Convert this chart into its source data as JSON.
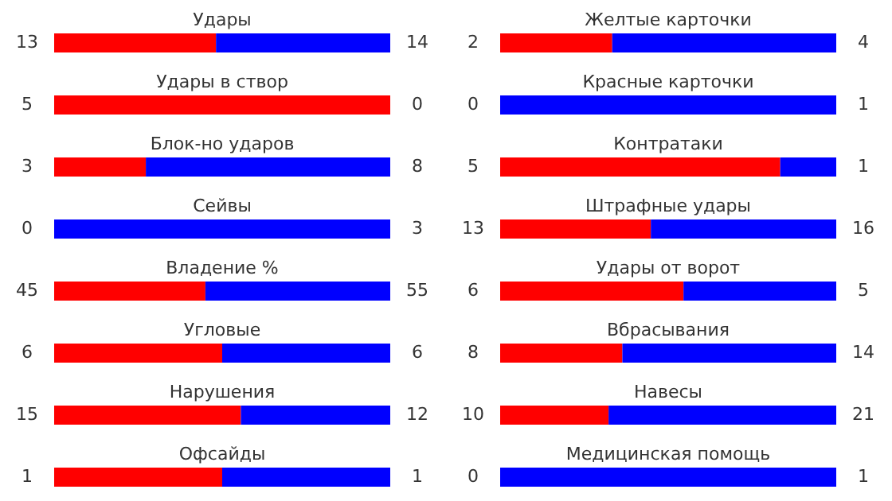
{
  "chart_data": [
    {
      "type": "bar",
      "orientation": "horizontal",
      "stacked": true,
      "data_labels": true,
      "categories": [
        "Удары"
      ],
      "series": [
        {
          "color": "#ff0000",
          "values": [
            13
          ]
        },
        {
          "color": "#0000ff",
          "values": [
            14
          ]
        }
      ]
    },
    {
      "type": "bar",
      "orientation": "horizontal",
      "stacked": true,
      "categories": [
        "Удары в створ"
      ],
      "annotations": [
        "0"
      ],
      "series": [
        {
          "color": "#ff0000",
          "values": [
            5
          ],
          "value_labels": [
            "5"
          ]
        },
        {
          "color": "#0000ff",
          "values": [
            0
          ],
          "value_labels": [
            null
          ]
        }
      ]
    },
    {
      "type": "bar",
      "orientation": "horizontal",
      "stacked": true,
      "data_labels": true,
      "categories": [
        "Блок-но ударов"
      ],
      "series": [
        {
          "color": "#ff0000",
          "values": [
            3
          ]
        },
        {
          "color": "#0000ff",
          "values": [
            8
          ]
        }
      ]
    },
    {
      "type": "bar",
      "orientation": "horizontal",
      "stacked": true,
      "categories": [
        "Сейвы"
      ],
      "annotations": [
        "0"
      ],
      "series": [
        {
          "color": "#ff0000",
          "values": [
            0
          ],
          "value_labels": [
            null
          ]
        },
        {
          "color": "#0000ff",
          "values": [
            3
          ],
          "value_labels": [
            "3"
          ]
        }
      ]
    },
    {
      "type": "bar",
      "orientation": "horizontal",
      "stacked": true,
      "data_labels": true,
      "categories": [
        "Владение %"
      ],
      "series": [
        {
          "color": "#ff0000",
          "values": [
            45
          ]
        },
        {
          "color": "#0000ff",
          "values": [
            55
          ]
        }
      ]
    },
    {
      "type": "bar",
      "orientation": "horizontal",
      "stacked": true,
      "data_labels": true,
      "categories": [
        "Угловые"
      ],
      "series": [
        {
          "color": "#ff0000",
          "values": [
            6
          ]
        },
        {
          "color": "#0000ff",
          "values": [
            6
          ]
        }
      ]
    },
    {
      "type": "bar",
      "orientation": "horizontal",
      "stacked": true,
      "data_labels": true,
      "categories": [
        "Нарушения"
      ],
      "series": [
        {
          "color": "#ff0000",
          "values": [
            15
          ]
        },
        {
          "color": "#0000ff",
          "values": [
            12
          ]
        }
      ]
    },
    {
      "type": "bar",
      "orientation": "horizontal",
      "stacked": true,
      "data_labels": true,
      "categories": [
        "Офсайды"
      ],
      "series": [
        {
          "color": "#ff0000",
          "values": [
            1
          ]
        },
        {
          "color": "#0000ff",
          "values": [
            1
          ]
        }
      ]
    },
    {
      "type": "bar",
      "orientation": "horizontal",
      "stacked": true,
      "data_labels": true,
      "categories": [
        "Желтые карточки"
      ],
      "series": [
        {
          "color": "#ff0000",
          "values": [
            2
          ]
        },
        {
          "color": "#0000ff",
          "values": [
            4
          ]
        }
      ]
    },
    {
      "type": "bar",
      "orientation": "horizontal",
      "stacked": true,
      "categories": [
        "Красные карточки"
      ],
      "annotations": [
        "0"
      ],
      "series": [
        {
          "color": "#ff0000",
          "values": [
            0
          ],
          "value_labels": [
            null
          ]
        },
        {
          "color": "#0000ff",
          "values": [
            1
          ],
          "value_labels": [
            "1"
          ]
        }
      ]
    },
    {
      "type": "bar",
      "orientation": "horizontal",
      "stacked": true,
      "data_labels": true,
      "categories": [
        "Контратаки"
      ],
      "series": [
        {
          "color": "#ff0000",
          "values": [
            5
          ]
        },
        {
          "color": "#0000ff",
          "values": [
            1
          ]
        }
      ]
    },
    {
      "type": "bar",
      "orientation": "horizontal",
      "stacked": true,
      "data_labels": true,
      "categories": [
        "Штрафные удары"
      ],
      "series": [
        {
          "color": "#ff0000",
          "values": [
            13
          ]
        },
        {
          "color": "#0000ff",
          "values": [
            16
          ]
        }
      ]
    },
    {
      "type": "bar",
      "orientation": "horizontal",
      "stacked": true,
      "data_labels": true,
      "categories": [
        "Удары от ворот"
      ],
      "series": [
        {
          "color": "#ff0000",
          "values": [
            6
          ]
        },
        {
          "color": "#0000ff",
          "values": [
            5
          ]
        }
      ]
    },
    {
      "type": "bar",
      "orientation": "horizontal",
      "stacked": true,
      "data_labels": true,
      "categories": [
        "Вбрасывания"
      ],
      "series": [
        {
          "color": "#ff0000",
          "values": [
            8
          ]
        },
        {
          "color": "#0000ff",
          "values": [
            14
          ]
        }
      ]
    },
    {
      "type": "bar",
      "orientation": "horizontal",
      "stacked": true,
      "data_labels": true,
      "categories": [
        "Навесы"
      ],
      "series": [
        {
          "color": "#ff0000",
          "values": [
            10
          ]
        },
        {
          "color": "#0000ff",
          "values": [
            21
          ]
        }
      ]
    },
    {
      "type": "bar",
      "orientation": "horizontal",
      "stacked": true,
      "categories": [
        "Медицинская помощь"
      ],
      "annotations": [
        "0"
      ],
      "series": [
        {
          "color": "#ff0000",
          "values": [
            0
          ],
          "value_labels": [
            null
          ]
        },
        {
          "color": "#0000ff",
          "values": [
            1
          ],
          "value_labels": [
            "1"
          ]
        }
      ]
    }
  ]
}
